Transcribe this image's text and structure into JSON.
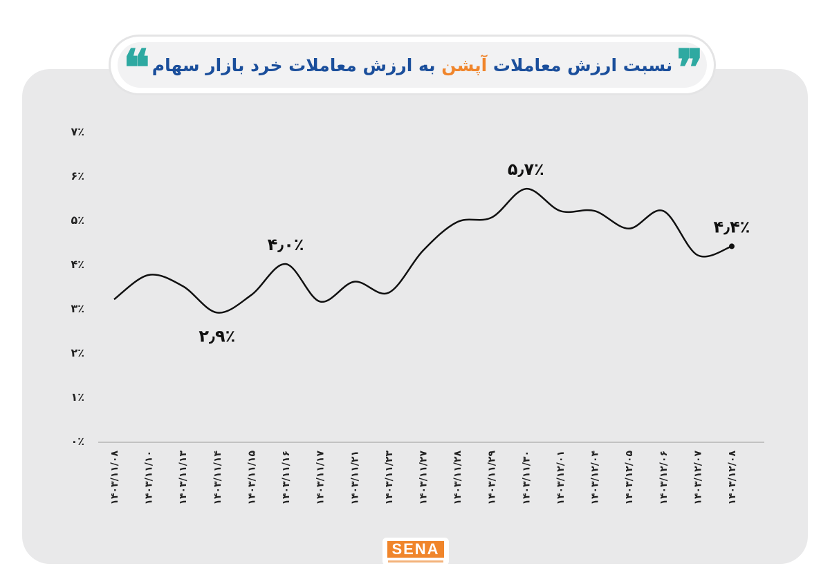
{
  "title": {
    "part1": "نسبت ارزش معاملات",
    "part2": "آپشن",
    "part3": "به ارزش معاملات خرد بازار سهام"
  },
  "quote_mark_right": "❞",
  "quote_mark_left": "❝",
  "logo": {
    "text": "SENA"
  },
  "colors": {
    "title_blue": "#1a4e9b",
    "title_orange": "#f0852b",
    "quote_teal": "#2ea9a1",
    "line": "#111111",
    "card": "#e9e9ea"
  },
  "chart_data": {
    "type": "line",
    "title": "نسبت ارزش معاملات آپشن به ارزش معاملات خرد بازار سهام",
    "categories": [
      "۱۴۰۳/۱۱/۰۸",
      "۱۴۰۳/۱۱/۱۰",
      "۱۴۰۳/۱۱/۱۳",
      "۱۴۰۳/۱۱/۱۴",
      "۱۴۰۳/۱۱/۱۵",
      "۱۴۰۳/۱۱/۱۶",
      "۱۴۰۳/۱۱/۱۷",
      "۱۴۰۳/۱۱/۲۱",
      "۱۴۰۳/۱۱/۲۳",
      "۱۴۰۳/۱۱/۲۷",
      "۱۴۰۳/۱۱/۲۸",
      "۱۴۰۳/۱۱/۲۹",
      "۱۴۰۳/۱۱/۳۰",
      "۱۴۰۳/۱۲/۰۱",
      "۱۴۰۳/۱۲/۰۴",
      "۱۴۰۳/۱۲/۰۵",
      "۱۴۰۳/۱۲/۰۶",
      "۱۴۰۳/۱۲/۰۷",
      "۱۴۰۳/۱۲/۰۸"
    ],
    "values": [
      3.2,
      3.75,
      3.5,
      2.9,
      3.3,
      4.0,
      3.15,
      3.6,
      3.35,
      4.3,
      4.95,
      5.05,
      5.7,
      5.2,
      5.2,
      4.8,
      5.2,
      4.2,
      4.4
    ],
    "ylim": [
      0,
      7
    ],
    "y_ticks": [
      "۰٪",
      "۱٪",
      "۲٪",
      "۳٪",
      "۴٪",
      "۵٪",
      "۶٪",
      "۷٪"
    ],
    "annotations": [
      {
        "index": 3,
        "text": "۲٫۹٪",
        "position": "below"
      },
      {
        "index": 5,
        "text": "۴٫۰٪",
        "position": "above"
      },
      {
        "index": 12,
        "text": "۵٫۷٪",
        "position": "above"
      },
      {
        "index": 18,
        "text": "۴٫۴٪",
        "position": "above"
      }
    ],
    "grid": false,
    "legend": "none"
  }
}
